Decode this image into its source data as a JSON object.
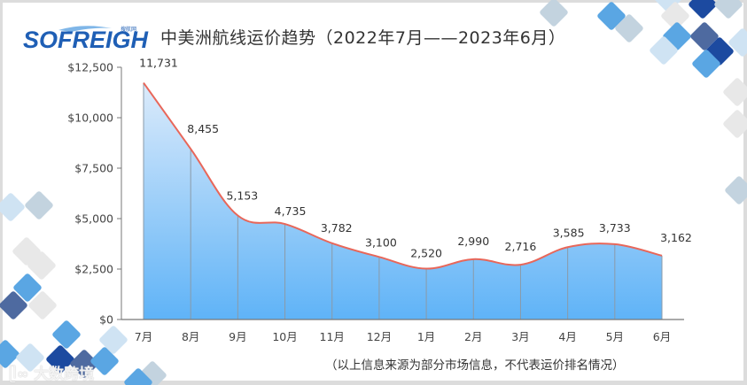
{
  "header": {
    "logo_text": "SOFREIGHT",
    "logo_sub": "搜航网",
    "title": "中美洲航线运价趋势（2022年7月——2023年6月）"
  },
  "footer": {
    "note": "（以上信息来源为部分市场信息，不代表运价排名情况）",
    "watermark": "大数跨境"
  },
  "colors": {
    "line": "#e8675a",
    "fill_top": "#dcebfb",
    "fill_bottom": "#5fb3f7",
    "axis": "#777777",
    "deco_dark": "#1c4aa0",
    "deco_mid": "#4e6aa0",
    "deco_blue": "#5aa6e3",
    "deco_light": "#cfe3f3",
    "deco_gray": "#e8e8e8",
    "deco_slate": "#c3d3df"
  },
  "chart_data": {
    "type": "area",
    "title": "中美洲航线运价趋势（2022年7月——2023年6月）",
    "xlabel": "",
    "ylabel": "",
    "categories": [
      "7月",
      "8月",
      "9月",
      "10月",
      "11月",
      "12月",
      "1月",
      "2月",
      "3月",
      "4月",
      "5月",
      "6月"
    ],
    "values": [
      11731,
      8455,
      5153,
      4735,
      3782,
      3100,
      2520,
      2990,
      2716,
      3585,
      3733,
      3162
    ],
    "value_labels": [
      "11,731",
      "8,455",
      "5,153",
      "4,735",
      "3,782",
      "3,100",
      "2,520",
      "2,990",
      "2,716",
      "3,585",
      "3,733",
      "3,162"
    ],
    "yticks": [
      0,
      2500,
      5000,
      7500,
      10000,
      12500
    ],
    "ytick_labels": [
      "$0",
      "$2,500",
      "$5,000",
      "$7,500",
      "$10,000",
      "$12,500"
    ],
    "ylim": [
      0,
      12500
    ],
    "grid": false,
    "legend": null,
    "smooth": true
  }
}
